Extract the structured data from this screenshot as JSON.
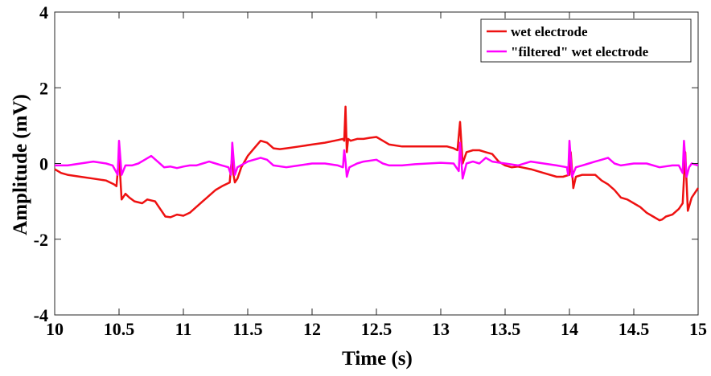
{
  "chart_data": {
    "type": "line",
    "title": "",
    "xlabel": "Time (s)",
    "ylabel": "Amplitude (mV)",
    "xlim": [
      10,
      15
    ],
    "ylim": [
      -4,
      4
    ],
    "x_ticks": [
      10,
      10.5,
      11,
      11.5,
      12,
      12.5,
      13,
      13.5,
      14,
      14.5,
      15
    ],
    "x_tick_labels": [
      "10",
      "10.5",
      "11",
      "11.5",
      "12",
      "12.5",
      "13",
      "13.5",
      "14",
      "14.5",
      "15"
    ],
    "y_ticks": [
      -4,
      -2,
      0,
      2,
      4
    ],
    "y_tick_labels": [
      "-4",
      "-2",
      "0",
      "2",
      "4"
    ],
    "grid": false,
    "legend_position": "top-right",
    "series": [
      {
        "name": "wet electrode",
        "color": "#ee1111",
        "points": [
          [
            10.0,
            -0.15
          ],
          [
            10.05,
            -0.25
          ],
          [
            10.1,
            -0.3
          ],
          [
            10.2,
            -0.35
          ],
          [
            10.3,
            -0.4
          ],
          [
            10.4,
            -0.45
          ],
          [
            10.46,
            -0.55
          ],
          [
            10.48,
            -0.6
          ],
          [
            10.5,
            0.2
          ],
          [
            10.52,
            -0.95
          ],
          [
            10.55,
            -0.8
          ],
          [
            10.58,
            -0.9
          ],
          [
            10.62,
            -1.0
          ],
          [
            10.68,
            -1.05
          ],
          [
            10.72,
            -0.95
          ],
          [
            10.78,
            -1.0
          ],
          [
            10.82,
            -1.2
          ],
          [
            10.86,
            -1.4
          ],
          [
            10.9,
            -1.42
          ],
          [
            10.95,
            -1.35
          ],
          [
            11.0,
            -1.38
          ],
          [
            11.05,
            -1.3
          ],
          [
            11.1,
            -1.15
          ],
          [
            11.15,
            -1.0
          ],
          [
            11.2,
            -0.85
          ],
          [
            11.25,
            -0.7
          ],
          [
            11.3,
            -0.6
          ],
          [
            11.36,
            -0.5
          ],
          [
            11.37,
            -0.1
          ],
          [
            11.38,
            0.2
          ],
          [
            11.39,
            -0.3
          ],
          [
            11.4,
            -0.5
          ],
          [
            11.42,
            -0.4
          ],
          [
            11.45,
            -0.1
          ],
          [
            11.5,
            0.2
          ],
          [
            11.55,
            0.4
          ],
          [
            11.6,
            0.6
          ],
          [
            11.65,
            0.55
          ],
          [
            11.7,
            0.4
          ],
          [
            11.75,
            0.38
          ],
          [
            11.8,
            0.4
          ],
          [
            11.9,
            0.45
          ],
          [
            12.0,
            0.5
          ],
          [
            12.1,
            0.55
          ],
          [
            12.2,
            0.62
          ],
          [
            12.24,
            0.65
          ],
          [
            12.25,
            0.6
          ],
          [
            12.26,
            1.5
          ],
          [
            12.27,
            0.3
          ],
          [
            12.28,
            0.65
          ],
          [
            12.3,
            0.6
          ],
          [
            12.35,
            0.65
          ],
          [
            12.4,
            0.65
          ],
          [
            12.45,
            0.68
          ],
          [
            12.5,
            0.7
          ],
          [
            12.55,
            0.6
          ],
          [
            12.6,
            0.5
          ],
          [
            12.7,
            0.45
          ],
          [
            12.8,
            0.45
          ],
          [
            12.9,
            0.45
          ],
          [
            13.0,
            0.45
          ],
          [
            13.05,
            0.45
          ],
          [
            13.1,
            0.4
          ],
          [
            13.13,
            0.35
          ],
          [
            13.15,
            1.1
          ],
          [
            13.17,
            0.0
          ],
          [
            13.2,
            0.3
          ],
          [
            13.25,
            0.35
          ],
          [
            13.3,
            0.35
          ],
          [
            13.35,
            0.3
          ],
          [
            13.4,
            0.25
          ],
          [
            13.45,
            0.05
          ],
          [
            13.5,
            -0.05
          ],
          [
            13.55,
            -0.1
          ],
          [
            13.6,
            -0.08
          ],
          [
            13.7,
            -0.15
          ],
          [
            13.8,
            -0.25
          ],
          [
            13.9,
            -0.35
          ],
          [
            13.95,
            -0.35
          ],
          [
            14.0,
            -0.3
          ],
          [
            14.01,
            0.3
          ],
          [
            14.03,
            -0.65
          ],
          [
            14.05,
            -0.35
          ],
          [
            14.1,
            -0.3
          ],
          [
            14.2,
            -0.3
          ],
          [
            14.25,
            -0.45
          ],
          [
            14.3,
            -0.55
          ],
          [
            14.35,
            -0.7
          ],
          [
            14.4,
            -0.9
          ],
          [
            14.45,
            -0.95
          ],
          [
            14.5,
            -1.05
          ],
          [
            14.55,
            -1.15
          ],
          [
            14.6,
            -1.3
          ],
          [
            14.65,
            -1.4
          ],
          [
            14.7,
            -1.5
          ],
          [
            14.72,
            -1.48
          ],
          [
            14.75,
            -1.4
          ],
          [
            14.8,
            -1.35
          ],
          [
            14.85,
            -1.2
          ],
          [
            14.88,
            -1.05
          ],
          [
            14.9,
            0.3
          ],
          [
            14.92,
            -1.25
          ],
          [
            14.95,
            -0.9
          ],
          [
            15.0,
            -0.65
          ]
        ]
      },
      {
        "name": "\"filtered\" wet electrode",
        "color": "#ff00ff",
        "points": [
          [
            10.0,
            -0.05
          ],
          [
            10.1,
            -0.05
          ],
          [
            10.2,
            0.0
          ],
          [
            10.3,
            0.05
          ],
          [
            10.4,
            0.0
          ],
          [
            10.45,
            -0.05
          ],
          [
            10.49,
            -0.3
          ],
          [
            10.5,
            0.6
          ],
          [
            10.52,
            -0.3
          ],
          [
            10.55,
            -0.05
          ],
          [
            10.6,
            -0.05
          ],
          [
            10.65,
            0.0
          ],
          [
            10.7,
            0.1
          ],
          [
            10.75,
            0.2
          ],
          [
            10.8,
            0.05
          ],
          [
            10.85,
            -0.1
          ],
          [
            10.9,
            -0.08
          ],
          [
            10.95,
            -0.12
          ],
          [
            11.0,
            -0.08
          ],
          [
            11.05,
            -0.05
          ],
          [
            11.1,
            -0.05
          ],
          [
            11.15,
            0.0
          ],
          [
            11.2,
            0.05
          ],
          [
            11.25,
            0.0
          ],
          [
            11.3,
            -0.05
          ],
          [
            11.35,
            -0.1
          ],
          [
            11.37,
            -0.3
          ],
          [
            11.38,
            0.55
          ],
          [
            11.4,
            -0.3
          ],
          [
            11.42,
            -0.1
          ],
          [
            11.5,
            0.05
          ],
          [
            11.6,
            0.15
          ],
          [
            11.65,
            0.1
          ],
          [
            11.7,
            -0.05
          ],
          [
            11.8,
            -0.1
          ],
          [
            11.9,
            -0.05
          ],
          [
            12.0,
            0.0
          ],
          [
            12.1,
            0.0
          ],
          [
            12.2,
            -0.05
          ],
          [
            12.24,
            -0.1
          ],
          [
            12.25,
            0.35
          ],
          [
            12.26,
            0.05
          ],
          [
            12.27,
            -0.35
          ],
          [
            12.29,
            -0.1
          ],
          [
            12.35,
            0.0
          ],
          [
            12.4,
            0.05
          ],
          [
            12.5,
            0.1
          ],
          [
            12.55,
            0.0
          ],
          [
            12.6,
            -0.05
          ],
          [
            12.7,
            -0.05
          ],
          [
            12.8,
            -0.02
          ],
          [
            12.9,
            0.0
          ],
          [
            13.0,
            0.02
          ],
          [
            13.1,
            0.0
          ],
          [
            13.14,
            -0.2
          ],
          [
            13.15,
            0.55
          ],
          [
            13.17,
            -0.4
          ],
          [
            13.2,
            0.0
          ],
          [
            13.25,
            0.05
          ],
          [
            13.3,
            0.0
          ],
          [
            13.35,
            0.15
          ],
          [
            13.4,
            0.05
          ],
          [
            13.5,
            0.0
          ],
          [
            13.6,
            -0.05
          ],
          [
            13.7,
            0.05
          ],
          [
            13.8,
            0.0
          ],
          [
            13.9,
            -0.05
          ],
          [
            13.98,
            -0.1
          ],
          [
            13.99,
            -0.3
          ],
          [
            14.0,
            0.6
          ],
          [
            14.02,
            -0.35
          ],
          [
            14.05,
            -0.1
          ],
          [
            14.1,
            -0.05
          ],
          [
            14.15,
            0.0
          ],
          [
            14.2,
            0.05
          ],
          [
            14.25,
            0.1
          ],
          [
            14.3,
            0.15
          ],
          [
            14.35,
            0.0
          ],
          [
            14.4,
            -0.05
          ],
          [
            14.5,
            0.0
          ],
          [
            14.6,
            0.0
          ],
          [
            14.7,
            -0.1
          ],
          [
            14.8,
            -0.05
          ],
          [
            14.85,
            -0.05
          ],
          [
            14.88,
            -0.25
          ],
          [
            14.89,
            0.6
          ],
          [
            14.91,
            -0.35
          ],
          [
            14.93,
            -0.1
          ],
          [
            14.95,
            0.0
          ],
          [
            15.0,
            -0.05
          ]
        ]
      }
    ]
  }
}
